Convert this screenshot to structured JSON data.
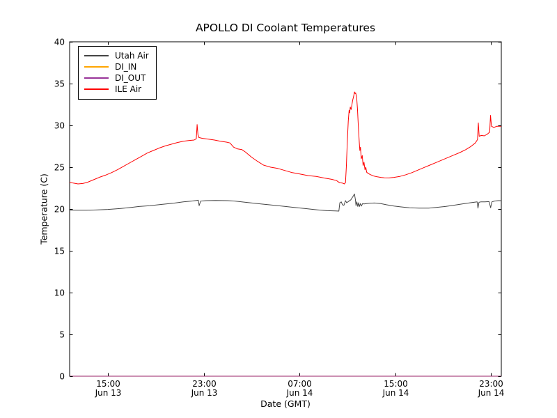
{
  "chart_data": {
    "type": "line",
    "title": "APOLLO DI Coolant Temperatures",
    "xlabel": "Date (GMT)",
    "ylabel": "Temperature (C)",
    "background_color": "#ffffff",
    "axis_color": "#000000",
    "grid": false,
    "legend_position": "upper left",
    "x_axis": {
      "unit": "hours since Jun 13 00:00 GMT",
      "min": 11.8,
      "max": 47.87,
      "ticks": [
        {
          "t": 15,
          "time": "15:00",
          "date": "Jun 13"
        },
        {
          "t": 23,
          "time": "23:00",
          "date": "Jun 13"
        },
        {
          "t": 31,
          "time": "07:00",
          "date": "Jun 14"
        },
        {
          "t": 39,
          "time": "15:00",
          "date": "Jun 14"
        },
        {
          "t": 47,
          "time": "23:00",
          "date": "Jun 14"
        }
      ]
    },
    "y_axis": {
      "min": 0,
      "max": 40,
      "ticks": [
        0,
        5,
        10,
        15,
        20,
        25,
        30,
        35,
        40
      ]
    },
    "series": [
      {
        "name": "Utah Air",
        "color": "#444444",
        "opacity": 1,
        "points": [
          [
            11.8,
            19.87
          ],
          [
            12.5,
            19.85
          ],
          [
            13.2,
            19.85
          ],
          [
            14,
            19.88
          ],
          [
            15,
            19.95
          ],
          [
            16,
            20.05
          ],
          [
            17,
            20.2
          ],
          [
            17.6,
            20.3
          ],
          [
            18.5,
            20.4
          ],
          [
            19.5,
            20.55
          ],
          [
            20.5,
            20.7
          ],
          [
            21.3,
            20.85
          ],
          [
            22,
            20.95
          ],
          [
            22.4,
            21.02
          ],
          [
            22.55,
            21.05
          ],
          [
            22.62,
            20.4
          ],
          [
            22.75,
            20.95
          ],
          [
            23.2,
            21.0
          ],
          [
            24,
            21.02
          ],
          [
            25,
            21.0
          ],
          [
            25.6,
            20.95
          ],
          [
            26.5,
            20.8
          ],
          [
            27.5,
            20.65
          ],
          [
            28.5,
            20.5
          ],
          [
            29.5,
            20.35
          ],
          [
            30.5,
            20.2
          ],
          [
            31.5,
            20.05
          ],
          [
            32.5,
            19.9
          ],
          [
            33.3,
            19.8
          ],
          [
            34,
            19.77
          ],
          [
            34.3,
            19.75
          ],
          [
            34.38,
            20.75
          ],
          [
            34.5,
            20.85
          ],
          [
            34.6,
            20.5
          ],
          [
            34.72,
            20.45
          ],
          [
            34.85,
            21.0
          ],
          [
            34.95,
            20.75
          ],
          [
            35.1,
            20.9
          ],
          [
            35.3,
            21.1
          ],
          [
            35.5,
            21.55
          ],
          [
            35.6,
            21.8
          ],
          [
            35.68,
            21.1
          ],
          [
            35.73,
            20.4
          ],
          [
            35.8,
            20.85
          ],
          [
            35.88,
            20.3
          ],
          [
            35.95,
            20.75
          ],
          [
            36.02,
            20.3
          ],
          [
            36.1,
            20.65
          ],
          [
            36.18,
            20.35
          ],
          [
            36.28,
            20.65
          ],
          [
            36.4,
            20.6
          ],
          [
            36.6,
            20.65
          ],
          [
            36.9,
            20.7
          ],
          [
            37.3,
            20.72
          ],
          [
            37.8,
            20.65
          ],
          [
            38.3,
            20.5
          ],
          [
            38.9,
            20.35
          ],
          [
            39.5,
            20.25
          ],
          [
            40.2,
            20.15
          ],
          [
            41,
            20.1
          ],
          [
            41.8,
            20.1
          ],
          [
            42.5,
            20.2
          ],
          [
            43.2,
            20.3
          ],
          [
            43.9,
            20.45
          ],
          [
            44.6,
            20.6
          ],
          [
            45.3,
            20.75
          ],
          [
            45.85,
            20.85
          ],
          [
            45.92,
            20.1
          ],
          [
            46,
            20.8
          ],
          [
            46.15,
            20.85
          ],
          [
            46.5,
            20.85
          ],
          [
            46.85,
            20.88
          ],
          [
            46.98,
            20.15
          ],
          [
            47.08,
            20.85
          ],
          [
            47.3,
            20.95
          ],
          [
            47.6,
            21.0
          ],
          [
            47.87,
            21.0
          ]
        ]
      },
      {
        "name": "DI_IN",
        "color": "#ffa500",
        "opacity": 1,
        "points": [
          [
            11.8,
            0
          ],
          [
            47.87,
            0
          ]
        ]
      },
      {
        "name": "DI_OUT",
        "color": "#800080",
        "opacity": 0.8,
        "points": [
          [
            11.8,
            0
          ],
          [
            47.87,
            0
          ]
        ]
      },
      {
        "name": "ILE Air",
        "color": "#ff0000",
        "opacity": 1,
        "points": [
          [
            11.8,
            23.2
          ],
          [
            12.1,
            23.1
          ],
          [
            12.5,
            23.0
          ],
          [
            12.9,
            23.05
          ],
          [
            13.3,
            23.2
          ],
          [
            13.8,
            23.5
          ],
          [
            14.3,
            23.8
          ],
          [
            14.8,
            24.05
          ],
          [
            15.3,
            24.35
          ],
          [
            15.8,
            24.7
          ],
          [
            16.3,
            25.1
          ],
          [
            16.8,
            25.5
          ],
          [
            17.3,
            25.9
          ],
          [
            17.8,
            26.3
          ],
          [
            18.3,
            26.7
          ],
          [
            18.8,
            27.0
          ],
          [
            19.3,
            27.3
          ],
          [
            19.8,
            27.55
          ],
          [
            20.3,
            27.75
          ],
          [
            20.8,
            27.95
          ],
          [
            21.3,
            28.1
          ],
          [
            21.8,
            28.2
          ],
          [
            22.2,
            28.25
          ],
          [
            22.38,
            28.4
          ],
          [
            22.45,
            30.1
          ],
          [
            22.52,
            28.9
          ],
          [
            22.6,
            28.55
          ],
          [
            22.9,
            28.45
          ],
          [
            23.4,
            28.35
          ],
          [
            23.9,
            28.25
          ],
          [
            24.4,
            28.1
          ],
          [
            24.9,
            28.0
          ],
          [
            25.2,
            27.9
          ],
          [
            25.5,
            27.4
          ],
          [
            25.8,
            27.2
          ],
          [
            26.2,
            27.1
          ],
          [
            26.5,
            26.8
          ],
          [
            27,
            26.2
          ],
          [
            27.5,
            25.7
          ],
          [
            28,
            25.25
          ],
          [
            28.6,
            25.0
          ],
          [
            29.2,
            24.85
          ],
          [
            29.8,
            24.6
          ],
          [
            30.4,
            24.35
          ],
          [
            31,
            24.2
          ],
          [
            31.7,
            24.0
          ],
          [
            32.4,
            23.9
          ],
          [
            33.1,
            23.7
          ],
          [
            33.7,
            23.55
          ],
          [
            34.1,
            23.4
          ],
          [
            34.35,
            23.15
          ],
          [
            34.6,
            23.1
          ],
          [
            34.75,
            23.0
          ],
          [
            34.85,
            23.15
          ],
          [
            34.92,
            25.0
          ],
          [
            35,
            28.0
          ],
          [
            35.08,
            30.5
          ],
          [
            35.15,
            31.8
          ],
          [
            35.2,
            31.5
          ],
          [
            35.25,
            32.2
          ],
          [
            35.32,
            31.9
          ],
          [
            35.4,
            32.6
          ],
          [
            35.45,
            33.0
          ],
          [
            35.5,
            33.3
          ],
          [
            35.55,
            33.6
          ],
          [
            35.6,
            34.0
          ],
          [
            35.65,
            33.8
          ],
          [
            35.7,
            33.9
          ],
          [
            35.78,
            33.4
          ],
          [
            35.85,
            32.0
          ],
          [
            35.92,
            30.0
          ],
          [
            36,
            28.0
          ],
          [
            36.05,
            27.0
          ],
          [
            36.1,
            27.4
          ],
          [
            36.17,
            26.0
          ],
          [
            36.25,
            26.4
          ],
          [
            36.32,
            25.2
          ],
          [
            36.4,
            25.6
          ],
          [
            36.48,
            24.7
          ],
          [
            36.55,
            25.0
          ],
          [
            36.62,
            24.4
          ],
          [
            36.75,
            24.25
          ],
          [
            36.95,
            24.1
          ],
          [
            37.2,
            23.95
          ],
          [
            37.5,
            23.85
          ],
          [
            37.8,
            23.78
          ],
          [
            38.1,
            23.73
          ],
          [
            38.5,
            23.72
          ],
          [
            38.9,
            23.78
          ],
          [
            39.4,
            23.9
          ],
          [
            39.9,
            24.1
          ],
          [
            40.4,
            24.35
          ],
          [
            40.9,
            24.65
          ],
          [
            41.4,
            24.95
          ],
          [
            41.9,
            25.25
          ],
          [
            42.4,
            25.55
          ],
          [
            42.9,
            25.85
          ],
          [
            43.4,
            26.15
          ],
          [
            43.9,
            26.45
          ],
          [
            44.4,
            26.75
          ],
          [
            44.9,
            27.1
          ],
          [
            45.3,
            27.45
          ],
          [
            45.7,
            27.9
          ],
          [
            45.88,
            28.3
          ],
          [
            45.95,
            30.3
          ],
          [
            46.02,
            28.7
          ],
          [
            46.2,
            28.8
          ],
          [
            46.45,
            28.75
          ],
          [
            46.7,
            28.95
          ],
          [
            46.9,
            29.2
          ],
          [
            46.97,
            31.2
          ],
          [
            47.05,
            29.9
          ],
          [
            47.25,
            29.75
          ],
          [
            47.5,
            29.9
          ],
          [
            47.87,
            29.9
          ]
        ]
      }
    ]
  }
}
